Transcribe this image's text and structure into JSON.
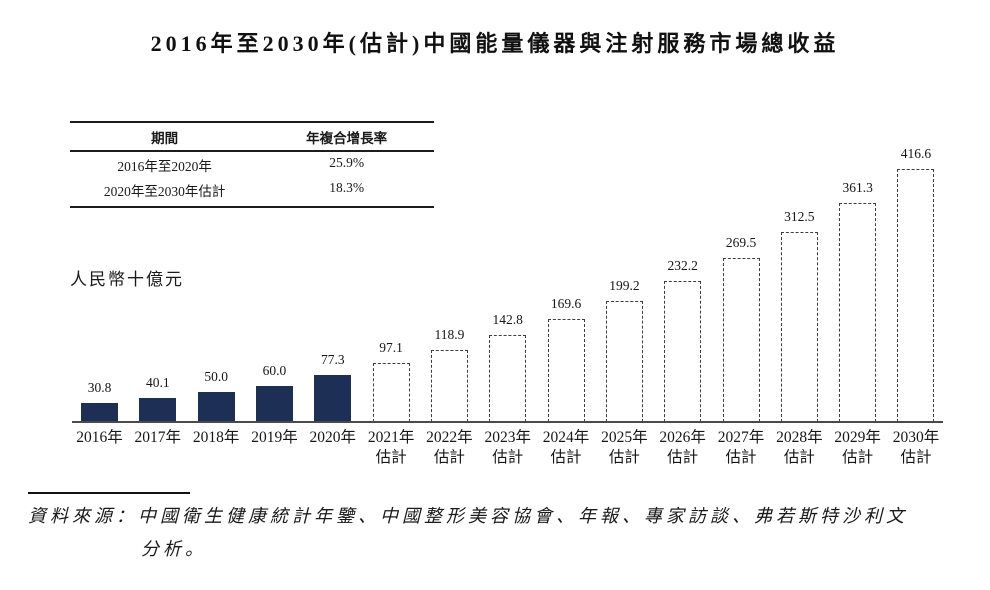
{
  "title": "2016年至2030年(估計)中國能量儀器與注射服務市場總收益",
  "table": {
    "headers": [
      "期間",
      "年複合增長率"
    ],
    "rows": [
      [
        "2016年至2020年",
        "25.9%"
      ],
      [
        "2020年至2030年估計",
        "18.3%"
      ]
    ]
  },
  "y_axis_label": "人民幣十億元",
  "chart_data": {
    "type": "bar",
    "title": "2016年至2030年(估計)中國能量儀器與注射服務市場總收益",
    "ylabel": "人民幣十億元",
    "categories": [
      "2016年",
      "2017年",
      "2018年",
      "2019年",
      "2020年",
      "2021年估計",
      "2022年估計",
      "2023年估計",
      "2024年估計",
      "2025年估計",
      "2026年估計",
      "2027年估計",
      "2028年估計",
      "2029年估計",
      "2030年估計"
    ],
    "values": [
      30.8,
      40.1,
      50.0,
      60.0,
      77.3,
      97.1,
      118.9,
      142.8,
      169.6,
      199.2,
      232.2,
      269.5,
      312.5,
      361.3,
      416.6
    ],
    "actual_count": 5,
    "estimate_label": "估計",
    "bar_styles": {
      "actual": "solid",
      "estimate": "dashed"
    },
    "colors": {
      "actual_fill": "#1e2f55",
      "estimate_border": "#3d3d3d",
      "axis": "#4a4a4a"
    },
    "ylim": [
      0,
      440
    ],
    "grid": false,
    "legend": false,
    "data_labels": true
  },
  "source": {
    "label": "資料來源：",
    "lines": [
      "中國衛生健康統計年鑒、中國整形美容協會、年報、專家訪談、弗若斯特沙利文",
      "分析。"
    ]
  }
}
